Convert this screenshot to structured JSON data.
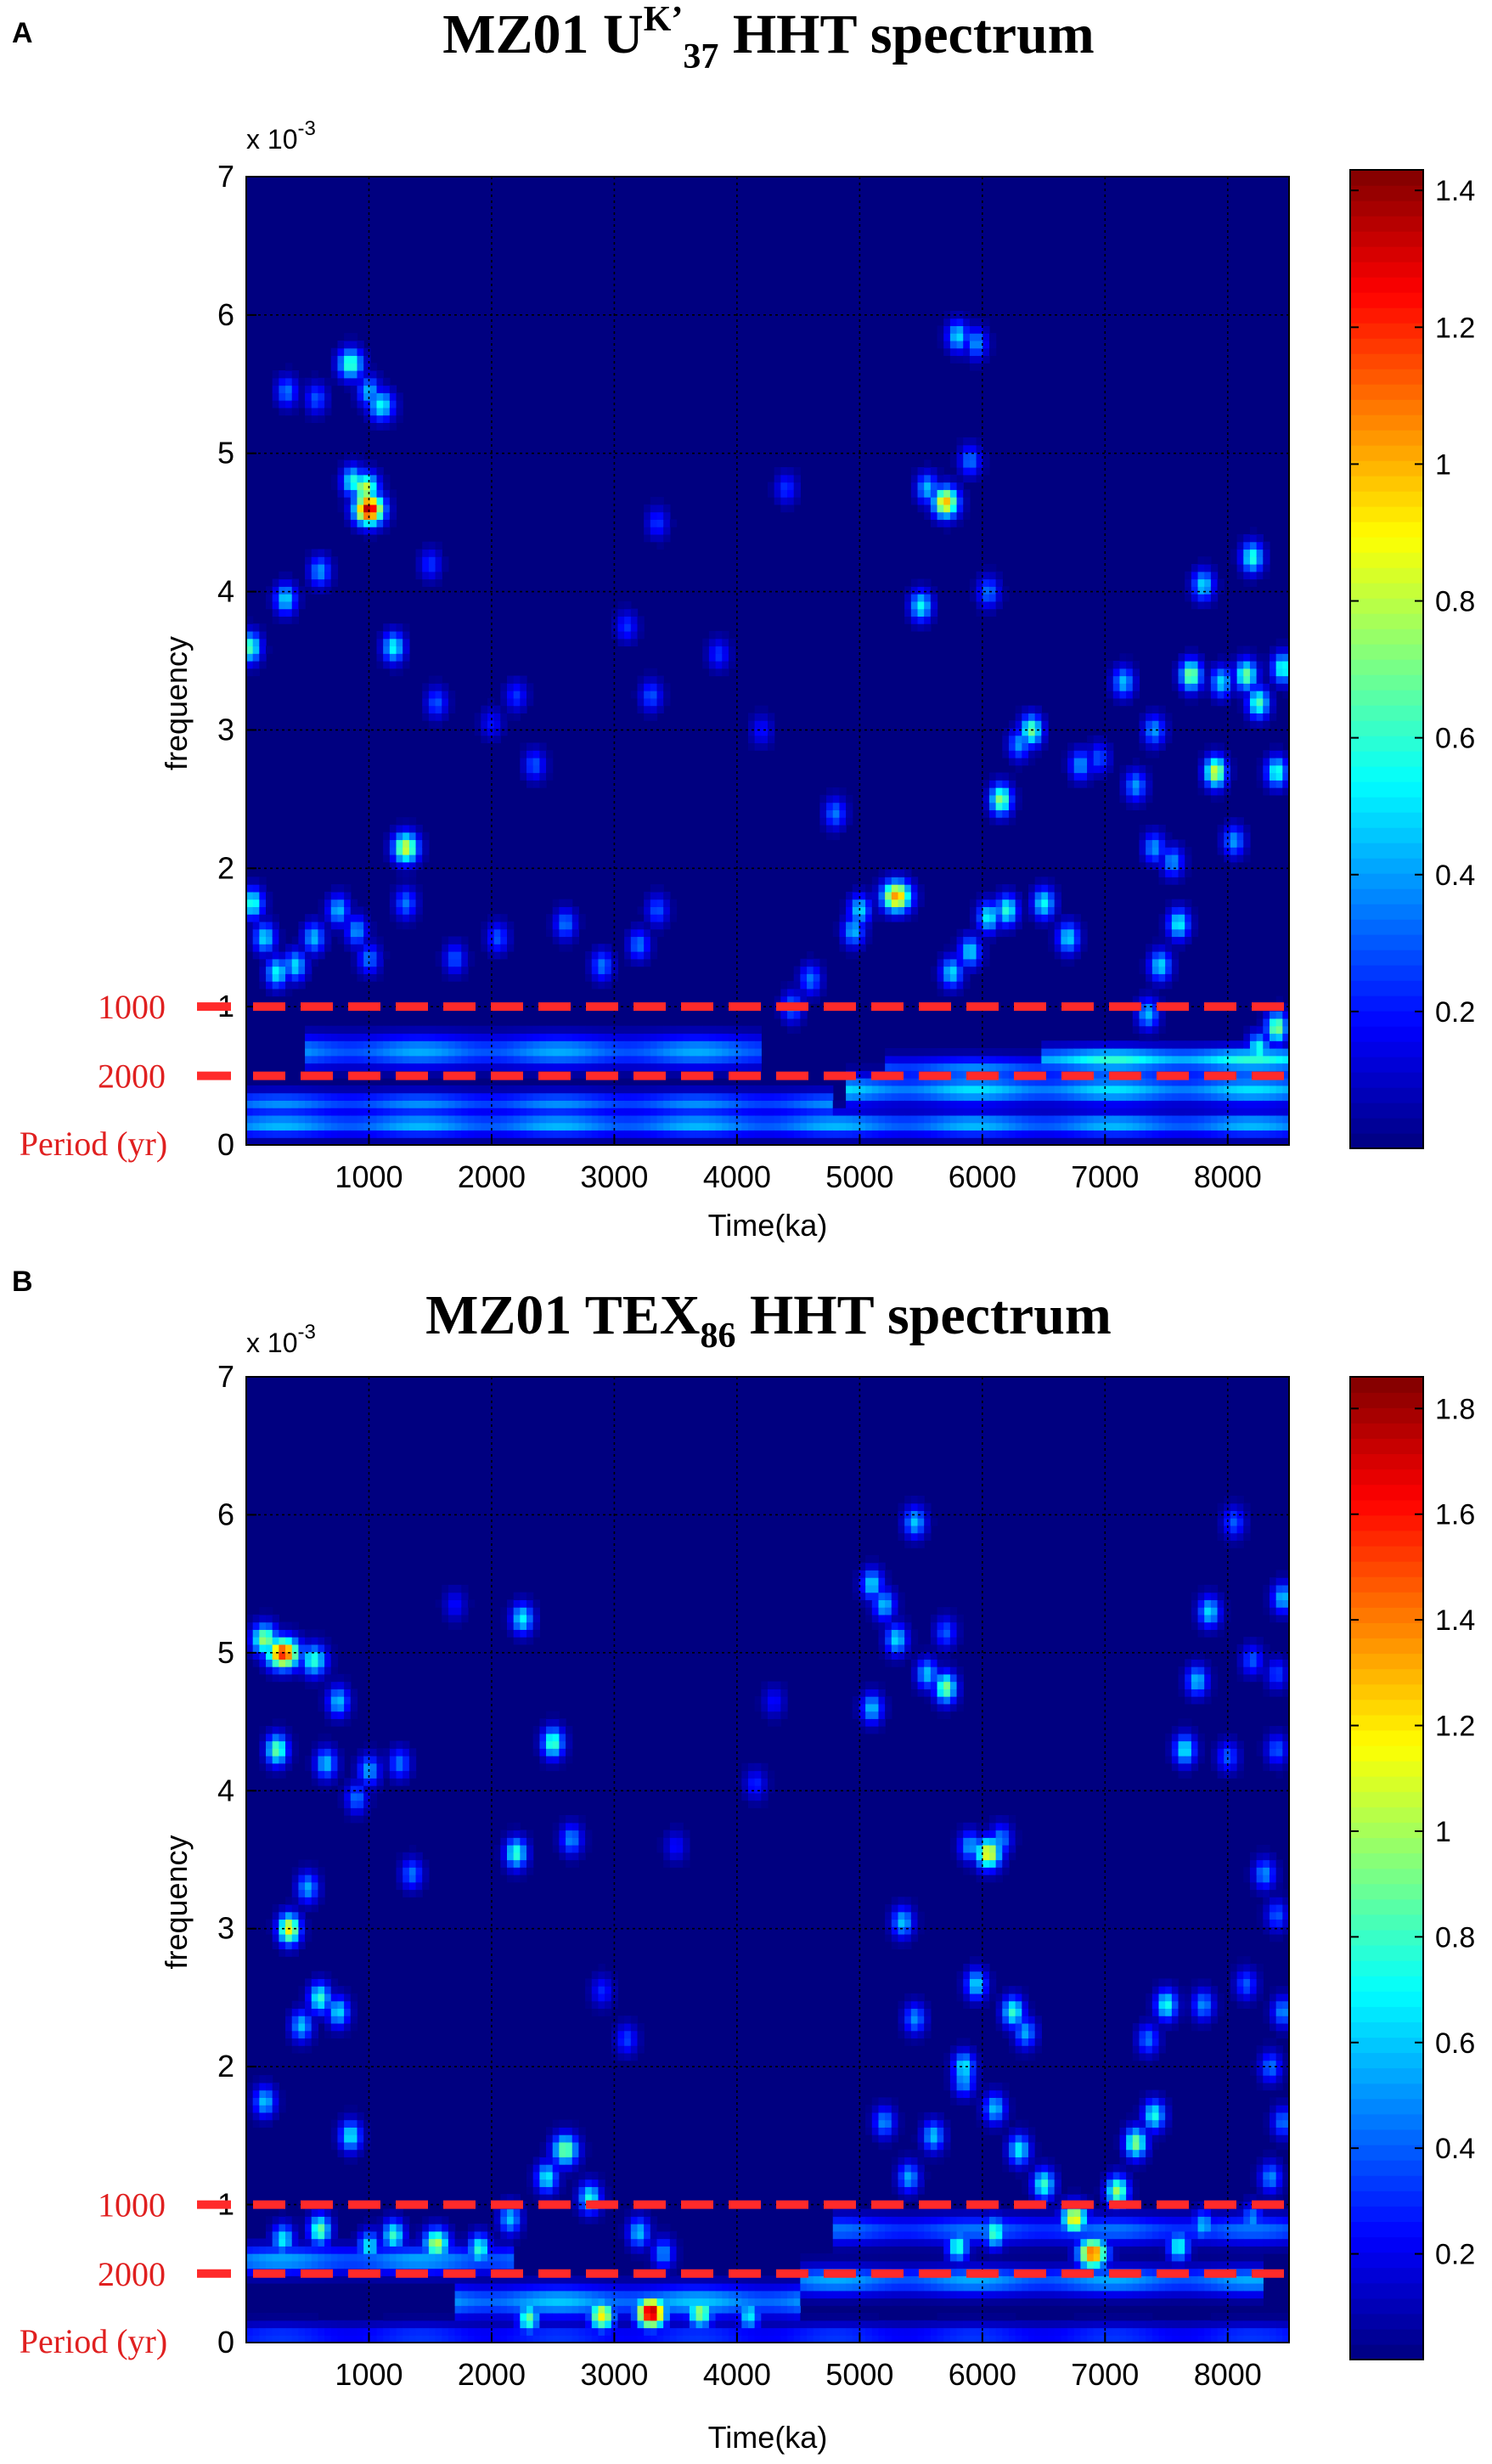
{
  "chart_data": [
    {
      "type": "heatmap",
      "panel": "A",
      "title_main": "MZ01 U",
      "title_sup": "K’",
      "title_sub": "37",
      "title_rest": " HHT spectrum",
      "xlabel": "Time(ka)",
      "ylabel": "frequency",
      "exponent_label": "x 10",
      "exponent_power": "-3",
      "xlim": [
        0,
        8500
      ],
      "ylim": [
        0,
        7
      ],
      "xticks": [
        1000,
        2000,
        3000,
        4000,
        5000,
        6000,
        7000,
        8000
      ],
      "yticks": [
        0,
        1,
        2,
        3,
        4,
        5,
        6,
        7
      ],
      "grid": true,
      "colorbar": {
        "ticks": [
          "0.2",
          "0.4",
          "0.6",
          "0.8",
          "1",
          "1.2",
          "1.4"
        ],
        "tick_values": [
          0.2,
          0.4,
          0.6,
          0.8,
          1.0,
          1.2,
          1.4
        ],
        "max": 1.43
      },
      "period_markers": [
        {
          "label": "1000",
          "frequency": 1.0
        },
        {
          "label": "2000",
          "frequency": 0.5
        }
      ],
      "period_axis_label": "Period (yr)",
      "period_zero_label": "0",
      "spots": [
        [
          1000,
          4.6,
          1.38,
          80
        ],
        [
          970,
          4.75,
          0.85,
          70
        ],
        [
          870,
          4.8,
          0.6,
          60
        ],
        [
          850,
          5.65,
          0.65,
          70
        ],
        [
          1000,
          5.45,
          0.45,
          60
        ],
        [
          1100,
          5.35,
          0.55,
          70
        ],
        [
          330,
          5.45,
          0.35,
          60
        ],
        [
          570,
          5.4,
          0.3,
          60
        ],
        [
          320,
          3.95,
          0.5,
          60
        ],
        [
          600,
          4.15,
          0.4,
          60
        ],
        [
          30,
          3.6,
          0.65,
          60
        ],
        [
          1200,
          3.6,
          0.55,
          60
        ],
        [
          1500,
          4.2,
          0.25,
          60
        ],
        [
          1300,
          2.15,
          0.85,
          70
        ],
        [
          1550,
          3.2,
          0.3,
          60
        ],
        [
          2350,
          2.75,
          0.3,
          60
        ],
        [
          2200,
          3.25,
          0.25,
          60
        ],
        [
          3300,
          3.25,
          0.3,
          60
        ],
        [
          3100,
          3.75,
          0.25,
          60
        ],
        [
          2000,
          3.05,
          0.2,
          60
        ],
        [
          3350,
          4.5,
          0.25,
          60
        ],
        [
          3850,
          3.55,
          0.25,
          60
        ],
        [
          4400,
          4.75,
          0.25,
          60
        ],
        [
          4200,
          3.0,
          0.2,
          60
        ],
        [
          4800,
          2.4,
          0.35,
          60
        ],
        [
          5300,
          1.8,
          1.05,
          80
        ],
        [
          5700,
          4.65,
          1.0,
          70
        ],
        [
          5550,
          4.75,
          0.45,
          60
        ],
        [
          5800,
          5.85,
          0.5,
          60
        ],
        [
          5950,
          5.8,
          0.4,
          60
        ],
        [
          5900,
          4.95,
          0.35,
          60
        ],
        [
          5500,
          3.9,
          0.55,
          60
        ],
        [
          6050,
          4.0,
          0.35,
          60
        ],
        [
          6400,
          3.0,
          0.7,
          60
        ],
        [
          6300,
          2.9,
          0.4,
          60
        ],
        [
          6150,
          2.5,
          0.75,
          60
        ],
        [
          6800,
          2.75,
          0.4,
          60
        ],
        [
          6950,
          2.8,
          0.3,
          60
        ],
        [
          7150,
          3.35,
          0.45,
          60
        ],
        [
          7400,
          3.0,
          0.4,
          60
        ],
        [
          7900,
          2.7,
          0.85,
          60
        ],
        [
          7700,
          3.4,
          0.75,
          60
        ],
        [
          7950,
          3.35,
          0.5,
          60
        ],
        [
          8150,
          3.4,
          0.7,
          60
        ],
        [
          8250,
          3.2,
          0.65,
          60
        ],
        [
          8400,
          2.7,
          0.6,
          60
        ],
        [
          8450,
          3.45,
          0.6,
          60
        ],
        [
          8200,
          4.25,
          0.6,
          60
        ],
        [
          7800,
          4.05,
          0.5,
          60
        ],
        [
          7250,
          2.6,
          0.4,
          60
        ],
        [
          8050,
          2.2,
          0.4,
          60
        ],
        [
          7550,
          2.05,
          0.4,
          60
        ],
        [
          7400,
          2.15,
          0.4,
          60
        ],
        [
          50,
          1.75,
          0.6,
          60
        ],
        [
          150,
          1.5,
          0.5,
          60
        ],
        [
          250,
          1.25,
          0.55,
          60
        ],
        [
          400,
          1.3,
          0.5,
          60
        ],
        [
          550,
          1.5,
          0.45,
          60
        ],
        [
          750,
          1.7,
          0.45,
          60
        ],
        [
          900,
          1.55,
          0.4,
          60
        ],
        [
          1000,
          1.35,
          0.35,
          60
        ],
        [
          1300,
          1.75,
          0.35,
          60
        ],
        [
          1700,
          1.35,
          0.3,
          60
        ],
        [
          2050,
          1.5,
          0.3,
          60
        ],
        [
          2600,
          1.6,
          0.35,
          60
        ],
        [
          2900,
          1.3,
          0.35,
          60
        ],
        [
          3200,
          1.45,
          0.35,
          60
        ],
        [
          3350,
          1.7,
          0.3,
          60
        ],
        [
          4450,
          1.0,
          0.35,
          60
        ],
        [
          4600,
          1.2,
          0.35,
          60
        ],
        [
          8400,
          0.85,
          0.75,
          60
        ],
        [
          8250,
          0.7,
          0.6,
          60
        ],
        [
          6200,
          1.7,
          0.6,
          60
        ],
        [
          6050,
          1.65,
          0.55,
          60
        ],
        [
          6500,
          1.75,
          0.55,
          60
        ],
        [
          6700,
          1.5,
          0.5,
          60
        ],
        [
          5900,
          1.4,
          0.5,
          60
        ],
        [
          5750,
          1.25,
          0.5,
          60
        ],
        [
          7600,
          1.6,
          0.55,
          60
        ],
        [
          7450,
          1.3,
          0.5,
          60
        ],
        [
          5000,
          1.7,
          0.5,
          60
        ],
        [
          4950,
          1.55,
          0.45,
          60
        ],
        [
          7350,
          0.95,
          0.45,
          60
        ]
      ],
      "bands": [
        {
          "x0": 0,
          "x1": 8500,
          "f": 0.15,
          "v": 0.45,
          "w": 0.06
        },
        {
          "x0": 0,
          "x1": 4800,
          "f": 0.3,
          "v": 0.38,
          "w": 0.06
        },
        {
          "x0": 500,
          "x1": 4200,
          "f": 0.68,
          "v": 0.42,
          "w": 0.08
        },
        {
          "x0": 4900,
          "x1": 8500,
          "f": 0.4,
          "v": 0.5,
          "w": 0.07
        },
        {
          "x0": 5200,
          "x1": 8500,
          "f": 0.55,
          "v": 0.38,
          "w": 0.06
        },
        {
          "x0": 6500,
          "x1": 8500,
          "f": 0.62,
          "v": 0.6,
          "w": 0.06
        }
      ]
    },
    {
      "type": "heatmap",
      "panel": "B",
      "title_main": "MZ01 TEX",
      "title_sup": "",
      "title_sub": "86",
      "title_rest": " HHT spectrum",
      "xlabel": "Time(ka)",
      "ylabel": "frequency",
      "exponent_label": "x 10",
      "exponent_power": "-3",
      "xlim": [
        0,
        8500
      ],
      "ylim": [
        0,
        7
      ],
      "xticks": [
        1000,
        2000,
        3000,
        4000,
        5000,
        6000,
        7000,
        8000
      ],
      "yticks": [
        0,
        1,
        2,
        3,
        4,
        5,
        6,
        7
      ],
      "grid": true,
      "colorbar": {
        "ticks": [
          "0.2",
          "0.4",
          "0.6",
          "0.8",
          "1",
          "1.2",
          "1.4",
          "1.6",
          "1.8"
        ],
        "tick_values": [
          0.2,
          0.4,
          0.6,
          0.8,
          1.0,
          1.2,
          1.4,
          1.6,
          1.8
        ],
        "max": 1.86
      },
      "period_markers": [
        {
          "label": "1000",
          "frequency": 1.0
        },
        {
          "label": "2000",
          "frequency": 0.5
        }
      ],
      "period_axis_label": "Period (yr)",
      "period_zero_label": "0",
      "spots": [
        [
          300,
          5.0,
          1.6,
          90
        ],
        [
          150,
          5.1,
          1.0,
          70
        ],
        [
          550,
          4.95,
          0.8,
          70
        ],
        [
          750,
          4.65,
          0.6,
          60
        ],
        [
          250,
          4.3,
          0.9,
          60
        ],
        [
          650,
          4.2,
          0.6,
          60
        ],
        [
          1000,
          4.15,
          0.55,
          60
        ],
        [
          900,
          3.95,
          0.45,
          60
        ],
        [
          1250,
          4.2,
          0.45,
          60
        ],
        [
          350,
          3.0,
          1.2,
          60
        ],
        [
          500,
          3.3,
          0.55,
          60
        ],
        [
          600,
          2.5,
          0.8,
          60
        ],
        [
          750,
          2.4,
          0.65,
          60
        ],
        [
          450,
          2.3,
          0.6,
          60
        ],
        [
          150,
          1.75,
          0.6,
          60
        ],
        [
          850,
          1.5,
          0.7,
          60
        ],
        [
          1350,
          3.4,
          0.45,
          60
        ],
        [
          1700,
          5.35,
          0.25,
          60
        ],
        [
          2250,
          5.25,
          0.7,
          60
        ],
        [
          2500,
          4.35,
          0.85,
          60
        ],
        [
          2650,
          3.65,
          0.5,
          60
        ],
        [
          2200,
          3.55,
          0.8,
          60
        ],
        [
          2900,
          2.55,
          0.3,
          60
        ],
        [
          3100,
          2.2,
          0.35,
          60
        ],
        [
          3500,
          3.6,
          0.25,
          60
        ],
        [
          4150,
          4.05,
          0.3,
          60
        ],
        [
          4300,
          4.65,
          0.25,
          60
        ],
        [
          5100,
          5.5,
          0.65,
          60
        ],
        [
          5200,
          5.35,
          0.6,
          60
        ],
        [
          5450,
          5.95,
          0.6,
          60
        ],
        [
          5300,
          5.1,
          0.65,
          60
        ],
        [
          5700,
          4.75,
          0.95,
          60
        ],
        [
          5550,
          4.85,
          0.6,
          60
        ],
        [
          5700,
          5.15,
          0.4,
          60
        ],
        [
          5100,
          4.6,
          0.6,
          60
        ],
        [
          6050,
          3.55,
          1.2,
          70
        ],
        [
          5900,
          3.6,
          0.55,
          60
        ],
        [
          6150,
          3.65,
          0.5,
          60
        ],
        [
          5350,
          3.05,
          0.6,
          60
        ],
        [
          5450,
          2.35,
          0.5,
          60
        ],
        [
          5950,
          2.6,
          0.65,
          60
        ],
        [
          6250,
          2.4,
          0.8,
          60
        ],
        [
          6350,
          2.25,
          0.55,
          60
        ],
        [
          5850,
          2.0,
          0.7,
          60
        ],
        [
          7500,
          2.45,
          0.75,
          60
        ],
        [
          7800,
          2.45,
          0.5,
          60
        ],
        [
          7350,
          2.2,
          0.45,
          60
        ],
        [
          7750,
          4.8,
          0.6,
          60
        ],
        [
          7850,
          5.3,
          0.65,
          60
        ],
        [
          7650,
          4.3,
          0.7,
          60
        ],
        [
          8000,
          4.25,
          0.4,
          60
        ],
        [
          8200,
          4.95,
          0.4,
          60
        ],
        [
          8400,
          4.85,
          0.35,
          60
        ],
        [
          8450,
          5.4,
          0.6,
          60
        ],
        [
          8400,
          4.3,
          0.4,
          60
        ],
        [
          8300,
          3.4,
          0.5,
          60
        ],
        [
          8400,
          3.1,
          0.4,
          60
        ],
        [
          8450,
          2.4,
          0.5,
          60
        ],
        [
          8350,
          2.0,
          0.45,
          60
        ],
        [
          8150,
          2.6,
          0.4,
          60
        ],
        [
          8050,
          5.95,
          0.4,
          60
        ],
        [
          2600,
          1.4,
          0.95,
          70
        ],
        [
          2450,
          1.2,
          0.7,
          60
        ],
        [
          2800,
          1.05,
          0.75,
          60
        ],
        [
          2150,
          0.9,
          0.6,
          60
        ],
        [
          1550,
          0.72,
          1.05,
          70
        ],
        [
          1200,
          0.78,
          0.8,
          60
        ],
        [
          600,
          0.82,
          0.9,
          60
        ],
        [
          300,
          0.75,
          0.7,
          60
        ],
        [
          1000,
          0.7,
          0.7,
          60
        ],
        [
          1900,
          0.68,
          0.8,
          60
        ],
        [
          3200,
          0.8,
          0.6,
          60
        ],
        [
          3400,
          0.65,
          0.5,
          60
        ],
        [
          3300,
          0.22,
          1.85,
          80
        ],
        [
          2900,
          0.2,
          1.2,
          70
        ],
        [
          3700,
          0.22,
          1.0,
          70
        ],
        [
          2300,
          0.18,
          0.9,
          60
        ],
        [
          4100,
          0.2,
          0.7,
          60
        ],
        [
          6900,
          0.65,
          1.5,
          80
        ],
        [
          6750,
          0.9,
          1.2,
          70
        ],
        [
          7100,
          1.1,
          1.0,
          60
        ],
        [
          7250,
          1.45,
          0.95,
          60
        ],
        [
          7400,
          1.65,
          0.75,
          60
        ],
        [
          6500,
          1.15,
          0.8,
          60
        ],
        [
          6300,
          1.4,
          0.7,
          60
        ],
        [
          6100,
          1.7,
          0.6,
          60
        ],
        [
          5850,
          1.9,
          0.55,
          60
        ],
        [
          5600,
          1.5,
          0.6,
          60
        ],
        [
          5400,
          1.2,
          0.55,
          60
        ],
        [
          5200,
          1.6,
          0.5,
          60
        ],
        [
          6100,
          0.8,
          0.85,
          60
        ],
        [
          5800,
          0.7,
          0.8,
          60
        ],
        [
          7600,
          0.7,
          0.75,
          60
        ],
        [
          7800,
          0.85,
          0.6,
          60
        ],
        [
          8200,
          0.9,
          0.5,
          60
        ],
        [
          8350,
          1.2,
          0.5,
          60
        ],
        [
          8450,
          1.6,
          0.45,
          60
        ]
      ],
      "bands": [
        {
          "x0": 0,
          "x1": 8500,
          "f": 0.05,
          "v": 0.35,
          "w": 0.06
        },
        {
          "x0": 1700,
          "x1": 4500,
          "f": 0.3,
          "v": 0.6,
          "w": 0.08
        },
        {
          "x0": 4500,
          "x1": 8300,
          "f": 0.45,
          "v": 0.55,
          "w": 0.07
        },
        {
          "x0": 0,
          "x1": 2200,
          "f": 0.6,
          "v": 0.55,
          "w": 0.07
        },
        {
          "x0": 4800,
          "x1": 8500,
          "f": 0.82,
          "v": 0.45,
          "w": 0.07
        }
      ]
    }
  ]
}
